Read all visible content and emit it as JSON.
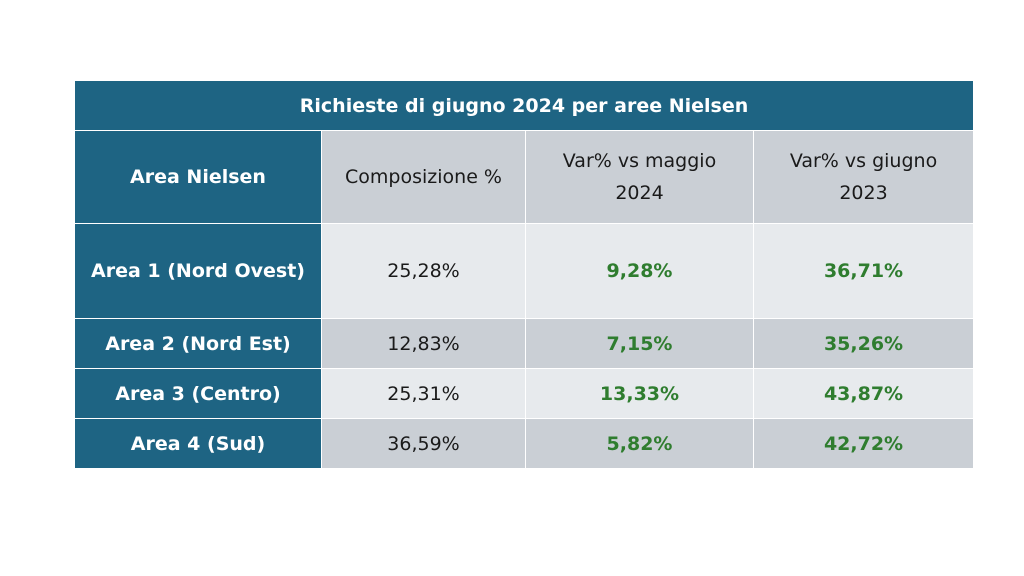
{
  "table": {
    "title": "Richieste di giugno 2024 per aree Nielsen",
    "headers": [
      "Area Nielsen",
      "Composizione %",
      "Var% vs maggio 2024",
      "Var% vs giugno 2023"
    ],
    "header_lines": {
      "col3_line1": "Var% vs maggio",
      "col3_line2": "2024",
      "col4_line1": "Var% vs giugno",
      "col4_line2": "2023"
    },
    "rows": [
      {
        "area": "Area 1 (Nord Ovest)",
        "composizione": "25,28%",
        "var_maggio": "9,28%",
        "var_giugno": "36,71%"
      },
      {
        "area": "Area 2 (Nord Est)",
        "composizione": "12,83%",
        "var_maggio": "7,15%",
        "var_giugno": "35,26%"
      },
      {
        "area": "Area 3 (Centro)",
        "composizione": "25,31%",
        "var_maggio": "13,33%",
        "var_giugno": "43,87%"
      },
      {
        "area": "Area 4 (Sud)",
        "composizione": "36,59%",
        "var_maggio": "5,82%",
        "var_giugno": "42,72%"
      }
    ],
    "colors": {
      "header_blue": "#1e6483",
      "cell_light": "#e7eaed",
      "cell_dark": "#cacfd5",
      "positive_green": "#2f7d2f"
    }
  }
}
